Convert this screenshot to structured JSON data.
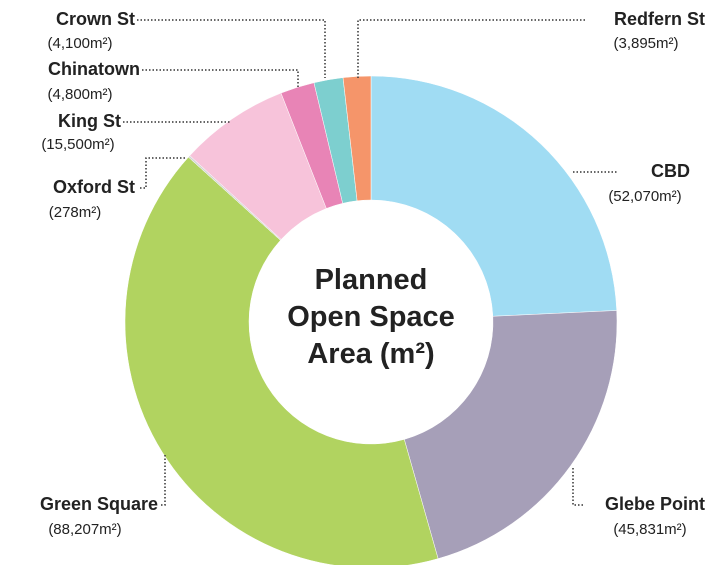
{
  "chart_data": {
    "type": "donut",
    "title": "Planned Open Space Area (m²)",
    "categories": [
      "CBD",
      "Glebe Point",
      "Green Square",
      "Oxford St",
      "King St",
      "Chinatown",
      "Crown St",
      "Redfern St"
    ],
    "values": [
      52070,
      45831,
      88207,
      278,
      15500,
      4800,
      4100,
      3895
    ],
    "value_labels": [
      "(52,070m²)",
      "(45,831m²)",
      "(88,207m²)",
      "(278m²)",
      "(15,500m²)",
      "(4,800m²)",
      "(4,100m²)",
      "(3,895m²)"
    ],
    "colors": [
      "#a0dcf3",
      "#a69fb8",
      "#b1d360",
      "#d6d6d6",
      "#f7c3da",
      "#e884b6",
      "#7dcfcf",
      "#f5956a"
    ]
  }
}
